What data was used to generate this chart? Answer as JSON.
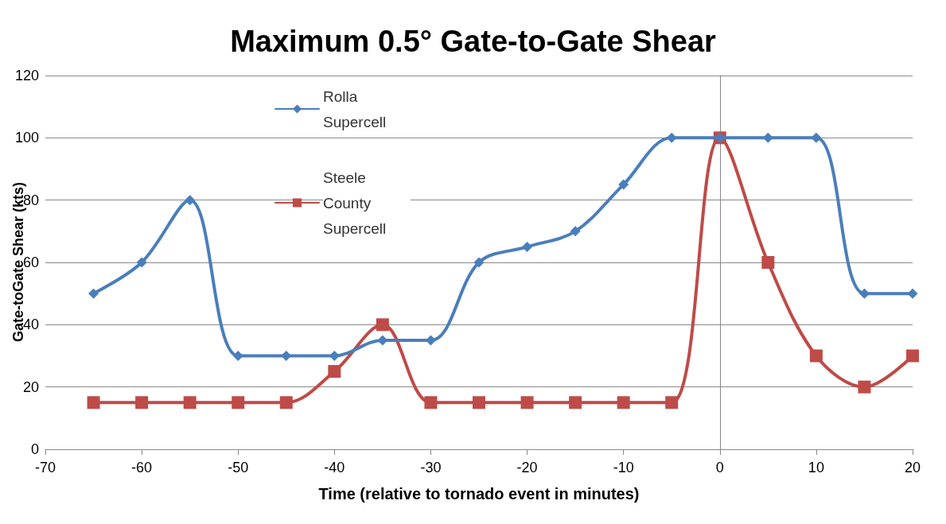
{
  "chart_data": {
    "type": "line",
    "title": "Maximum 0.5° Gate-to-Gate Shear",
    "xlabel": "Time (relative to tornado event in minutes)",
    "ylabel": "Gate-toGate Shear (kts)",
    "x": [
      -65,
      -60,
      -55,
      -50,
      -45,
      -40,
      -35,
      -30,
      -25,
      -20,
      -15,
      -10,
      -5,
      0,
      5,
      10,
      15,
      20
    ],
    "series": [
      {
        "name": "Rolla Supercell",
        "color": "#4a7ebb",
        "marker": "diamond",
        "values": [
          50,
          60,
          80,
          30,
          30,
          30,
          35,
          35,
          60,
          65,
          70,
          85,
          100,
          100,
          100,
          100,
          50,
          50
        ]
      },
      {
        "name": "Steele County Supercell",
        "color": "#be4b48",
        "marker": "square",
        "values": [
          15,
          15,
          15,
          15,
          15,
          25,
          40,
          15,
          15,
          15,
          15,
          15,
          15,
          100,
          60,
          30,
          20,
          30
        ]
      }
    ],
    "xlim": [
      -70,
      20
    ],
    "xticks": [
      -70,
      -60,
      -50,
      -40,
      -30,
      -20,
      -10,
      0,
      10,
      20
    ],
    "ylim": [
      0,
      120
    ],
    "yticks": [
      0,
      20,
      40,
      60,
      80,
      100,
      120
    ],
    "grid": "y",
    "legend": "top",
    "line_style": "solid"
  }
}
